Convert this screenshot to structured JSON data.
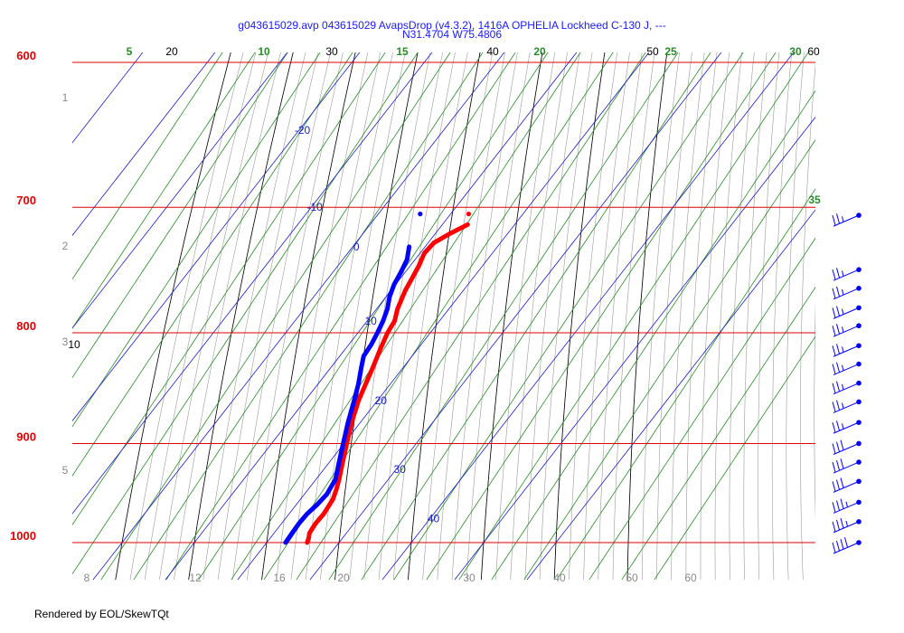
{
  "title": {
    "line1": "g043615029.avp 043615029 AvapsDrop (v4.3.2), 1416A OPHELIA Lockheed C-130 J, ---",
    "line2": "N31.4704 W75.4806"
  },
  "footer": "Rendered by EOL/SkewTQt",
  "colors": {
    "isobar": "#e00000",
    "isotherm": "#1a1acc",
    "dry_adiabat": "#000000",
    "mixing_ratio": "#2a8a2a",
    "grey_lines": "#9a9a9a",
    "temperature": "#ff0000",
    "dewpoint": "#0000ff",
    "wind_barb": "#0000ff"
  },
  "chart_data": {
    "type": "skew-t",
    "x_axis": {
      "quantity": "temperature",
      "unit": "degC",
      "range_at_1000hPa": [
        -5,
        47
      ]
    },
    "y_axis": {
      "quantity": "pressure",
      "unit": "hPa",
      "log_scale": true,
      "range": [
        1025,
        590
      ]
    },
    "pressure_ticks": [
      "600",
      "700",
      "800",
      "900",
      "1000"
    ],
    "isotherm_labels": [
      "-20",
      "-10",
      "0",
      "10",
      "20",
      "30",
      "40"
    ],
    "dry_adiabat_labels_top": [
      "20",
      "30",
      "40",
      "50",
      "60"
    ],
    "dry_adiabat_label_left": "10",
    "mixing_ratio_labels_top": [
      "5",
      "10",
      "15",
      "20",
      "25",
      "30"
    ],
    "mixing_ratio_label_right": "35",
    "bottom_labels": [
      "8",
      "12",
      "16",
      "20",
      "30",
      "40",
      "50",
      "60"
    ],
    "height_km_labels": [
      "1",
      "2",
      "3",
      "5"
    ],
    "temperature_profile": [
      {
        "p": 1000,
        "t": 25.6
      },
      {
        "p": 995,
        "t": 25.3
      },
      {
        "p": 990,
        "t": 24.9
      },
      {
        "p": 980,
        "t": 24.7
      },
      {
        "p": 970,
        "t": 24.8
      },
      {
        "p": 955,
        "t": 24.5
      },
      {
        "p": 945,
        "t": 23.9
      },
      {
        "p": 935,
        "t": 23.2
      },
      {
        "p": 920,
        "t": 22.0
      },
      {
        "p": 900,
        "t": 20.4
      },
      {
        "p": 880,
        "t": 18.8
      },
      {
        "p": 860,
        "t": 17.4
      },
      {
        "p": 845,
        "t": 16.6
      },
      {
        "p": 830,
        "t": 15.8
      },
      {
        "p": 815,
        "t": 14.9
      },
      {
        "p": 800,
        "t": 14.1
      },
      {
        "p": 790,
        "t": 13.8
      },
      {
        "p": 780,
        "t": 12.9
      },
      {
        "p": 765,
        "t": 12.0
      },
      {
        "p": 755,
        "t": 11.6
      },
      {
        "p": 745,
        "t": 11.2
      },
      {
        "p": 735,
        "t": 10.6
      },
      {
        "p": 727,
        "t": 10.8
      },
      {
        "p": 720,
        "t": 12.0
      },
      {
        "p": 713,
        "t": 13.5
      }
    ],
    "dewpoint_profile": [
      {
        "p": 1000,
        "t": 22.6
      },
      {
        "p": 990,
        "t": 22.5
      },
      {
        "p": 980,
        "t": 22.4
      },
      {
        "p": 970,
        "t": 22.5
      },
      {
        "p": 960,
        "t": 22.9
      },
      {
        "p": 950,
        "t": 23.1
      },
      {
        "p": 935,
        "t": 22.7
      },
      {
        "p": 920,
        "t": 21.5
      },
      {
        "p": 900,
        "t": 19.9
      },
      {
        "p": 880,
        "t": 18.3
      },
      {
        "p": 860,
        "t": 16.8
      },
      {
        "p": 845,
        "t": 15.6
      },
      {
        "p": 830,
        "t": 14.2
      },
      {
        "p": 820,
        "t": 13.3
      },
      {
        "p": 810,
        "t": 13.1
      },
      {
        "p": 800,
        "t": 12.7
      },
      {
        "p": 790,
        "t": 12.2
      },
      {
        "p": 780,
        "t": 11.5
      },
      {
        "p": 770,
        "t": 10.5
      },
      {
        "p": 760,
        "t": 9.8
      },
      {
        "p": 750,
        "t": 9.4
      },
      {
        "p": 740,
        "t": 8.9
      },
      {
        "p": 730,
        "t": 7.8
      }
    ],
    "top_level_markers": [
      {
        "name": "temperature",
        "p": 705,
        "t": 12.5
      },
      {
        "name": "dewpoint",
        "p": 705,
        "t": 5.8
      }
    ],
    "wind_barbs": [
      {
        "p": 706,
        "speed_kt": 25
      },
      {
        "p": 748,
        "speed_kt": 25
      },
      {
        "p": 763,
        "speed_kt": 25
      },
      {
        "p": 779,
        "speed_kt": 25
      },
      {
        "p": 794,
        "speed_kt": 25
      },
      {
        "p": 811,
        "speed_kt": 25
      },
      {
        "p": 827,
        "speed_kt": 25
      },
      {
        "p": 844,
        "speed_kt": 25
      },
      {
        "p": 861,
        "speed_kt": 25
      },
      {
        "p": 880,
        "speed_kt": 25
      },
      {
        "p": 900,
        "speed_kt": 30
      },
      {
        "p": 918,
        "speed_kt": 30
      },
      {
        "p": 937,
        "speed_kt": 30
      },
      {
        "p": 958,
        "speed_kt": 35
      },
      {
        "p": 978,
        "speed_kt": 35
      },
      {
        "p": 1000,
        "speed_kt": 40
      }
    ]
  }
}
